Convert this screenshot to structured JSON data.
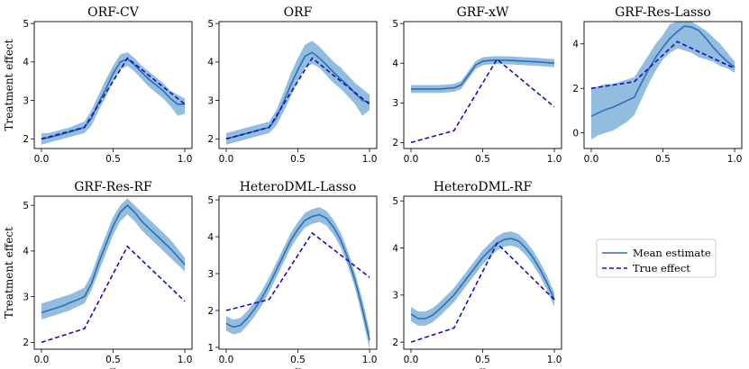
{
  "chart_data": [
    {
      "type": "line",
      "title": "ORF-CV",
      "xlabel": "",
      "ylabel": "Treatment effect",
      "xlim": [
        -0.05,
        1.05
      ],
      "ylim": [
        1.75,
        5.05
      ],
      "xticks": [
        0.0,
        0.5,
        1.0
      ],
      "xtick_labels": [
        "0.0",
        "0.5",
        "1.0"
      ],
      "yticks": [
        2,
        3,
        4,
        5
      ],
      "ytick_labels": [
        "2",
        "3",
        "4",
        "5"
      ],
      "series": [
        {
          "role": "band",
          "x": [
            0,
            0.05,
            0.1,
            0.15,
            0.2,
            0.25,
            0.3,
            0.35,
            0.4,
            0.45,
            0.5,
            0.55,
            0.6,
            0.65,
            0.7,
            0.75,
            0.8,
            0.85,
            0.9,
            0.95,
            1.0
          ],
          "lower": [
            1.85,
            1.9,
            1.95,
            2.0,
            2.05,
            2.1,
            2.15,
            2.35,
            2.75,
            3.1,
            3.5,
            3.8,
            3.9,
            3.75,
            3.55,
            3.35,
            3.2,
            3.05,
            2.85,
            2.6,
            2.65
          ],
          "upper": [
            2.15,
            2.15,
            2.2,
            2.25,
            2.3,
            2.38,
            2.45,
            2.75,
            3.15,
            3.55,
            3.9,
            4.2,
            4.25,
            4.1,
            3.9,
            3.75,
            3.6,
            3.45,
            3.25,
            3.15,
            3.05
          ]
        },
        {
          "name": "Mean estimate",
          "x": [
            0,
            0.05,
            0.1,
            0.15,
            0.2,
            0.25,
            0.3,
            0.35,
            0.4,
            0.45,
            0.5,
            0.55,
            0.6,
            0.65,
            0.7,
            0.75,
            0.8,
            0.85,
            0.9,
            0.95,
            1.0
          ],
          "y": [
            2.0,
            2.03,
            2.08,
            2.13,
            2.18,
            2.24,
            2.3,
            2.55,
            2.95,
            3.3,
            3.7,
            4.0,
            4.08,
            3.92,
            3.73,
            3.55,
            3.4,
            3.25,
            3.05,
            2.9,
            2.9
          ]
        },
        {
          "name": "True effect",
          "x": [
            0,
            0.3,
            0.6,
            1.0
          ],
          "y": [
            2.0,
            2.3,
            4.1,
            2.9
          ]
        }
      ]
    },
    {
      "type": "line",
      "title": "ORF",
      "xlabel": "",
      "ylabel": "",
      "xlim": [
        -0.05,
        1.05
      ],
      "ylim": [
        1.75,
        5.05
      ],
      "xticks": [
        0.0,
        0.5,
        1.0
      ],
      "xtick_labels": [
        "0.0",
        "0.5",
        "1.0"
      ],
      "yticks": [
        2,
        3,
        4,
        5
      ],
      "ytick_labels": [
        "2",
        "3",
        "4",
        "5"
      ],
      "series": [
        {
          "role": "band",
          "x": [
            0,
            0.05,
            0.1,
            0.15,
            0.2,
            0.25,
            0.3,
            0.35,
            0.4,
            0.45,
            0.5,
            0.55,
            0.6,
            0.65,
            0.7,
            0.75,
            0.8,
            0.85,
            0.9,
            0.95,
            1.0
          ],
          "lower": [
            1.85,
            1.9,
            1.95,
            2.0,
            2.05,
            2.1,
            2.15,
            2.35,
            2.7,
            3.1,
            3.5,
            3.85,
            3.95,
            3.85,
            3.65,
            3.45,
            3.3,
            3.1,
            2.9,
            2.6,
            2.75
          ],
          "upper": [
            2.15,
            2.2,
            2.25,
            2.3,
            2.35,
            2.4,
            2.45,
            2.75,
            3.2,
            3.7,
            4.1,
            4.45,
            4.55,
            4.4,
            4.2,
            4.0,
            3.85,
            3.65,
            3.45,
            3.3,
            3.15
          ]
        },
        {
          "name": "Mean estimate",
          "x": [
            0,
            0.05,
            0.1,
            0.15,
            0.2,
            0.25,
            0.3,
            0.35,
            0.4,
            0.45,
            0.5,
            0.55,
            0.6,
            0.65,
            0.7,
            0.75,
            0.8,
            0.85,
            0.9,
            0.95,
            1.0
          ],
          "y": [
            2.0,
            2.05,
            2.1,
            2.15,
            2.2,
            2.25,
            2.3,
            2.55,
            2.95,
            3.4,
            3.8,
            4.15,
            4.25,
            4.1,
            3.92,
            3.73,
            3.55,
            3.38,
            3.18,
            3.0,
            2.95
          ]
        },
        {
          "name": "True effect",
          "x": [
            0,
            0.3,
            0.6,
            1.0
          ],
          "y": [
            2.0,
            2.3,
            4.1,
            2.9
          ]
        }
      ]
    },
    {
      "type": "line",
      "title": "GRF-xW",
      "xlabel": "",
      "ylabel": "",
      "xlim": [
        -0.05,
        1.05
      ],
      "ylim": [
        1.85,
        5.05
      ],
      "xticks": [
        0.0,
        0.5,
        1.0
      ],
      "xtick_labels": [
        "0.0",
        "0.5",
        "1.0"
      ],
      "yticks": [
        2,
        3,
        4,
        5
      ],
      "ytick_labels": [
        "2",
        "3",
        "4",
        "5"
      ],
      "series": [
        {
          "role": "band",
          "x": [
            0,
            0.1,
            0.2,
            0.3,
            0.35,
            0.4,
            0.45,
            0.5,
            0.55,
            0.6,
            0.7,
            0.8,
            0.9,
            1.0
          ],
          "lower": [
            3.25,
            3.25,
            3.25,
            3.28,
            3.35,
            3.6,
            3.85,
            3.95,
            3.97,
            3.98,
            3.97,
            3.95,
            3.93,
            3.9
          ],
          "upper": [
            3.45,
            3.45,
            3.45,
            3.48,
            3.55,
            3.8,
            4.05,
            4.15,
            4.17,
            4.18,
            4.17,
            4.15,
            4.13,
            4.1
          ]
        },
        {
          "name": "Mean estimate",
          "x": [
            0,
            0.1,
            0.2,
            0.3,
            0.35,
            0.4,
            0.45,
            0.5,
            0.55,
            0.6,
            0.7,
            0.8,
            0.9,
            1.0
          ],
          "y": [
            3.35,
            3.35,
            3.35,
            3.38,
            3.45,
            3.7,
            3.95,
            4.05,
            4.07,
            4.08,
            4.07,
            4.05,
            4.03,
            4.0
          ]
        },
        {
          "name": "True effect",
          "x": [
            0,
            0.3,
            0.6,
            1.0
          ],
          "y": [
            2.0,
            2.3,
            4.1,
            2.9
          ]
        }
      ]
    },
    {
      "type": "line",
      "title": "GRF-Res-Lasso",
      "xlabel": "",
      "ylabel": "",
      "xlim": [
        -0.05,
        1.05
      ],
      "ylim": [
        -0.7,
        5.0
      ],
      "xticks": [
        0.0,
        0.5,
        1.0
      ],
      "xtick_labels": [
        "0.0",
        "0.5",
        "1.0"
      ],
      "yticks": [
        0,
        2,
        4
      ],
      "ytick_labels": [
        "0",
        "2",
        "4"
      ],
      "series": [
        {
          "role": "band",
          "x": [
            0,
            0.05,
            0.1,
            0.15,
            0.2,
            0.25,
            0.3,
            0.35,
            0.4,
            0.45,
            0.5,
            0.55,
            0.6,
            0.65,
            0.7,
            0.75,
            0.8,
            0.85,
            0.9,
            0.95,
            1.0
          ],
          "lower": [
            -0.3,
            -0.1,
            0.0,
            0.1,
            0.3,
            0.5,
            0.8,
            1.5,
            2.2,
            2.8,
            3.3,
            3.6,
            3.8,
            3.7,
            3.6,
            3.4,
            3.3,
            3.2,
            3.0,
            2.9,
            2.7
          ],
          "upper": [
            2.0,
            2.1,
            2.2,
            2.2,
            2.3,
            2.4,
            2.5,
            3.0,
            3.5,
            4.0,
            4.4,
            4.9,
            5.0,
            5.0,
            5.0,
            4.8,
            4.6,
            4.3,
            4.0,
            3.6,
            3.2
          ]
        },
        {
          "name": "Mean estimate",
          "x": [
            0,
            0.05,
            0.1,
            0.15,
            0.2,
            0.25,
            0.3,
            0.35,
            0.4,
            0.45,
            0.5,
            0.55,
            0.6,
            0.65,
            0.7,
            0.75,
            0.8,
            0.85,
            0.9,
            0.95,
            1.0
          ],
          "y": [
            0.75,
            0.9,
            1.05,
            1.15,
            1.3,
            1.45,
            1.6,
            2.25,
            2.85,
            3.4,
            3.85,
            4.25,
            4.55,
            4.8,
            4.75,
            4.6,
            4.25,
            3.85,
            3.5,
            3.2,
            2.95
          ]
        },
        {
          "name": "True effect",
          "x": [
            0,
            0.3,
            0.6,
            1.0
          ],
          "y": [
            2.0,
            2.3,
            4.1,
            2.9
          ]
        }
      ]
    },
    {
      "type": "line",
      "title": "GRF-Res-RF",
      "xlabel": "x",
      "ylabel": "Treatment effect",
      "xlim": [
        -0.05,
        1.05
      ],
      "ylim": [
        1.85,
        5.2
      ],
      "xticks": [
        0.0,
        0.5,
        1.0
      ],
      "xtick_labels": [
        "0.0",
        "0.5",
        "1.0"
      ],
      "yticks": [
        2,
        3,
        4,
        5
      ],
      "ytick_labels": [
        "2",
        "3",
        "4",
        "5"
      ],
      "series": [
        {
          "role": "band",
          "x": [
            0,
            0.05,
            0.1,
            0.15,
            0.2,
            0.25,
            0.3,
            0.35,
            0.4,
            0.45,
            0.5,
            0.55,
            0.6,
            0.65,
            0.7,
            0.75,
            0.8,
            0.85,
            0.9,
            0.95,
            1.0
          ],
          "lower": [
            2.5,
            2.55,
            2.6,
            2.65,
            2.7,
            2.78,
            2.85,
            3.15,
            3.55,
            3.95,
            4.35,
            4.65,
            4.8,
            4.65,
            4.45,
            4.3,
            4.15,
            4.0,
            3.85,
            3.7,
            3.55
          ],
          "upper": [
            2.85,
            2.9,
            2.95,
            3.0,
            3.05,
            3.12,
            3.2,
            3.5,
            3.95,
            4.35,
            4.75,
            5.0,
            5.15,
            5.0,
            4.85,
            4.7,
            4.55,
            4.4,
            4.25,
            4.05,
            3.85
          ]
        },
        {
          "name": "Mean estimate",
          "x": [
            0,
            0.05,
            0.1,
            0.15,
            0.2,
            0.25,
            0.3,
            0.35,
            0.4,
            0.45,
            0.5,
            0.55,
            0.6,
            0.65,
            0.7,
            0.75,
            0.8,
            0.85,
            0.9,
            0.95,
            1.0
          ],
          "y": [
            2.65,
            2.7,
            2.75,
            2.8,
            2.87,
            2.93,
            3.0,
            3.3,
            3.75,
            4.15,
            4.55,
            4.85,
            5.0,
            4.85,
            4.65,
            4.5,
            4.35,
            4.2,
            4.05,
            3.88,
            3.7
          ]
        },
        {
          "name": "True effect",
          "x": [
            0,
            0.3,
            0.6,
            1.0
          ],
          "y": [
            2.0,
            2.3,
            4.1,
            2.9
          ]
        }
      ]
    },
    {
      "type": "line",
      "title": "HeteroDML-Lasso",
      "xlabel": "x",
      "ylabel": "",
      "xlim": [
        -0.05,
        1.05
      ],
      "ylim": [
        0.95,
        5.1
      ],
      "xticks": [
        0.0,
        0.5,
        1.0
      ],
      "xtick_labels": [
        "0.0",
        "0.5",
        "1.0"
      ],
      "yticks": [
        1,
        2,
        3,
        4,
        5
      ],
      "ytick_labels": [
        "1",
        "2",
        "3",
        "4",
        "5"
      ],
      "series": [
        {
          "role": "band",
          "x": [
            0,
            0.05,
            0.1,
            0.15,
            0.2,
            0.25,
            0.3,
            0.35,
            0.4,
            0.45,
            0.5,
            0.55,
            0.6,
            0.65,
            0.7,
            0.75,
            0.8,
            0.85,
            0.9,
            0.95,
            1.0
          ],
          "lower": [
            1.45,
            1.35,
            1.4,
            1.6,
            1.85,
            2.15,
            2.5,
            2.9,
            3.3,
            3.7,
            4.0,
            4.25,
            4.35,
            4.4,
            4.3,
            4.05,
            3.7,
            3.2,
            2.6,
            1.8,
            0.95
          ],
          "upper": [
            1.85,
            1.75,
            1.8,
            2.0,
            2.25,
            2.55,
            2.9,
            3.3,
            3.7,
            4.1,
            4.4,
            4.65,
            4.75,
            4.8,
            4.7,
            4.45,
            4.1,
            3.6,
            3.0,
            2.3,
            1.45
          ]
        },
        {
          "name": "Mean estimate",
          "x": [
            0,
            0.05,
            0.1,
            0.15,
            0.2,
            0.25,
            0.3,
            0.35,
            0.4,
            0.45,
            0.5,
            0.55,
            0.6,
            0.65,
            0.7,
            0.75,
            0.8,
            0.85,
            0.9,
            0.95,
            1.0
          ],
          "y": [
            1.65,
            1.55,
            1.6,
            1.8,
            2.05,
            2.35,
            2.7,
            3.1,
            3.5,
            3.9,
            4.2,
            4.45,
            4.55,
            4.6,
            4.5,
            4.25,
            3.9,
            3.4,
            2.8,
            2.05,
            1.2
          ]
        },
        {
          "name": "True effect",
          "x": [
            0,
            0.3,
            0.6,
            1.0
          ],
          "y": [
            2.0,
            2.3,
            4.1,
            2.9
          ]
        }
      ]
    },
    {
      "type": "line",
      "title": "HeteroDML-RF",
      "xlabel": "x",
      "ylabel": "",
      "xlim": [
        -0.05,
        1.05
      ],
      "ylim": [
        1.85,
        5.1
      ],
      "xticks": [
        0.0,
        0.5,
        1.0
      ],
      "xtick_labels": [
        "0.0",
        "0.5",
        "1.0"
      ],
      "yticks": [
        2,
        3,
        4,
        5
      ],
      "ytick_labels": [
        "2",
        "3",
        "4",
        "5"
      ],
      "series": [
        {
          "role": "band",
          "x": [
            0,
            0.05,
            0.1,
            0.15,
            0.2,
            0.25,
            0.3,
            0.35,
            0.4,
            0.45,
            0.5,
            0.55,
            0.6,
            0.65,
            0.7,
            0.75,
            0.8,
            0.85,
            0.9,
            0.95,
            1.0
          ],
          "lower": [
            2.45,
            2.35,
            2.35,
            2.42,
            2.55,
            2.7,
            2.85,
            3.05,
            3.25,
            3.45,
            3.65,
            3.8,
            3.95,
            4.03,
            4.05,
            4.0,
            3.85,
            3.65,
            3.4,
            3.1,
            2.75
          ],
          "upper": [
            2.75,
            2.65,
            2.65,
            2.72,
            2.85,
            3.0,
            3.15,
            3.35,
            3.55,
            3.75,
            3.95,
            4.1,
            4.25,
            4.33,
            4.35,
            4.3,
            4.15,
            3.95,
            3.7,
            3.4,
            3.05
          ]
        },
        {
          "name": "Mean estimate",
          "x": [
            0,
            0.05,
            0.1,
            0.15,
            0.2,
            0.25,
            0.3,
            0.35,
            0.4,
            0.45,
            0.5,
            0.55,
            0.6,
            0.65,
            0.7,
            0.75,
            0.8,
            0.85,
            0.9,
            0.95,
            1.0
          ],
          "y": [
            2.6,
            2.5,
            2.5,
            2.57,
            2.7,
            2.85,
            3.0,
            3.2,
            3.4,
            3.6,
            3.8,
            3.95,
            4.1,
            4.18,
            4.2,
            4.15,
            4.0,
            3.8,
            3.55,
            3.25,
            2.9
          ]
        },
        {
          "name": "True effect",
          "x": [
            0,
            0.3,
            0.6,
            1.0
          ],
          "y": [
            2.0,
            2.3,
            4.1,
            2.9
          ]
        }
      ]
    }
  ],
  "legend": {
    "entries": [
      {
        "label": "Mean estimate",
        "style": "solid"
      },
      {
        "label": "True effect",
        "style": "dashed"
      }
    ]
  },
  "colors": {
    "mean": "#2e6fb3",
    "band": "#86b6da",
    "true": "#1010cc"
  }
}
